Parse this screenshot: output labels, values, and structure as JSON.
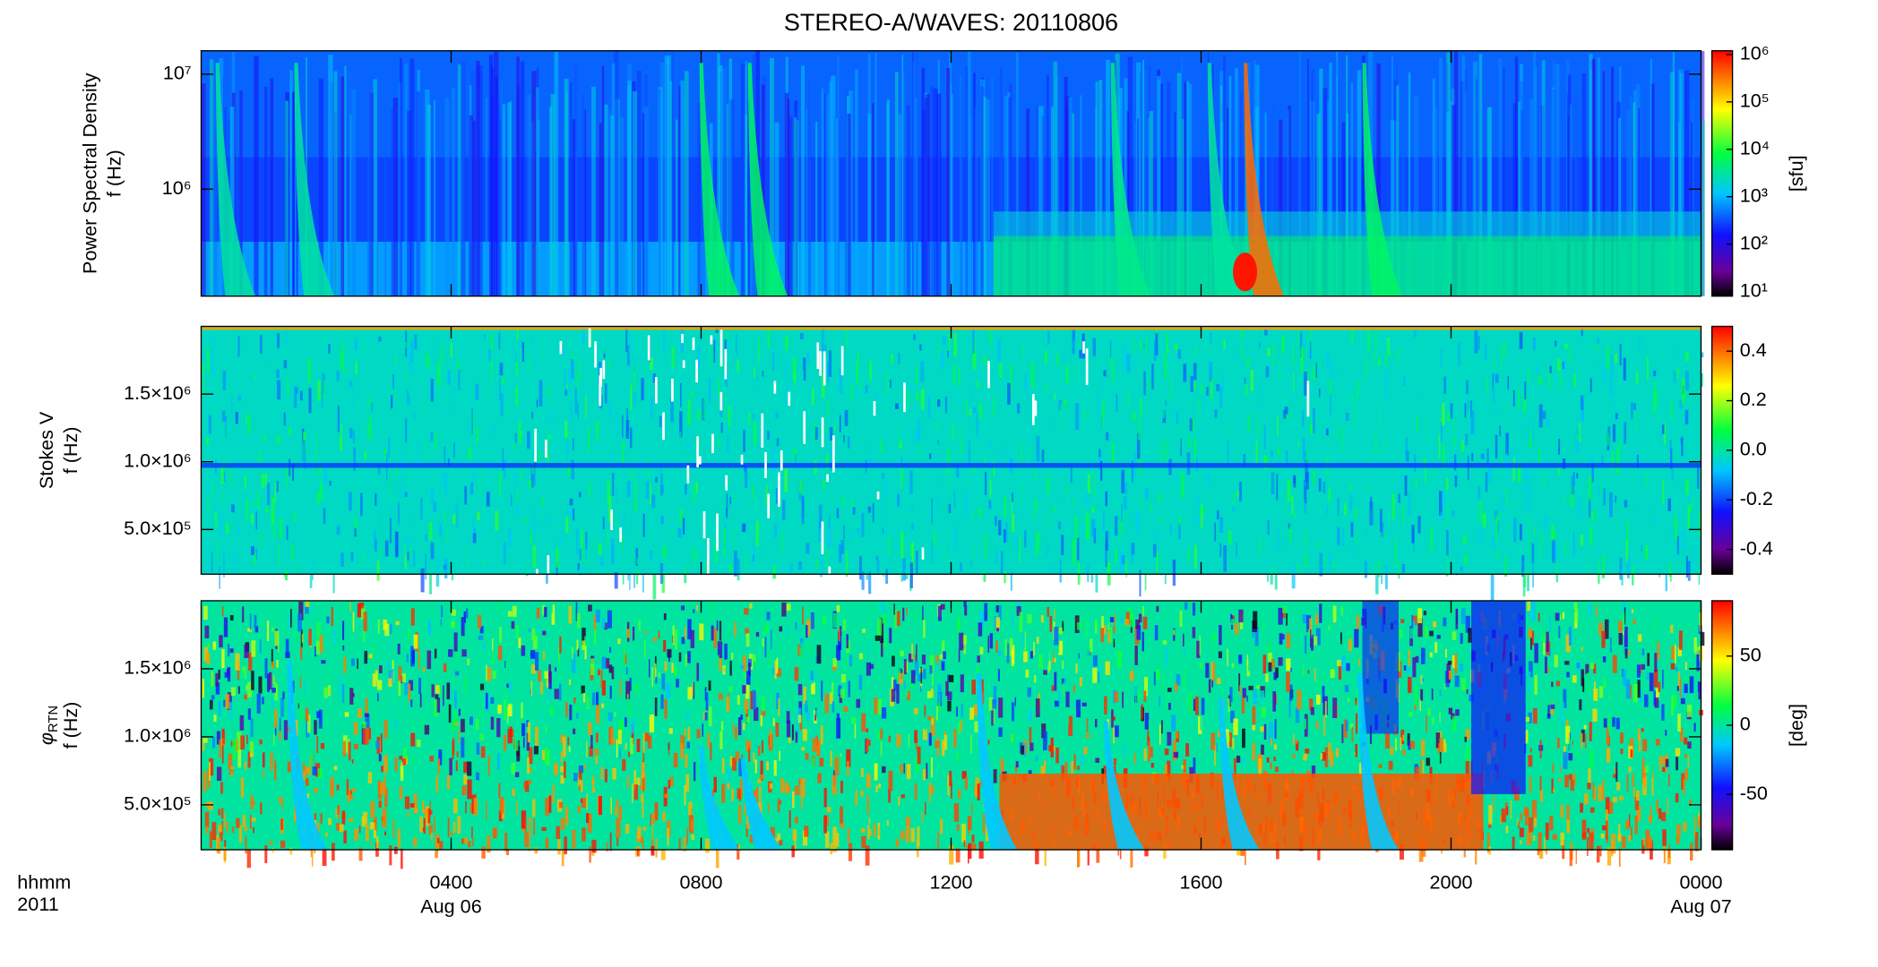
{
  "chart_data": [
    {
      "type": "heatmap",
      "title": "STEREO-A/WAVES: 20110806",
      "ylabel": "Power Spectral Density",
      "ylabel2": "f (Hz)",
      "ylog": true,
      "ylim": [
        117000,
        16000000
      ],
      "yticks": [
        {
          "value": 1000000,
          "label": "10⁶"
        },
        {
          "value": 10000000,
          "label": "10⁷"
        }
      ],
      "xlim": [
        0,
        24
      ],
      "xticks": [
        4,
        8,
        12,
        16,
        20
      ],
      "colormap": "rainbow",
      "clog": true,
      "clim": [
        8,
        1200000
      ],
      "cticks": [
        {
          "value": 10,
          "label": "10¹"
        },
        {
          "value": 100,
          "label": "10²"
        },
        {
          "value": 1000,
          "label": "10³"
        },
        {
          "value": 10000,
          "label": "10⁴"
        },
        {
          "value": 100000,
          "label": "10⁵"
        },
        {
          "value": 1000000,
          "label": "10⁶"
        }
      ],
      "clabel": "[sfu]"
    },
    {
      "type": "heatmap",
      "ylabel": "Stokes V",
      "ylabel2": "f (Hz)",
      "ylog": false,
      "ylim": [
        170000,
        2000000
      ],
      "yticks": [
        {
          "value": 500000,
          "label": "5.0×10⁵"
        },
        {
          "value": 1000000,
          "label": "1.0×10⁶"
        },
        {
          "value": 1500000,
          "label": "1.5×10⁶"
        }
      ],
      "xlim": [
        0,
        24
      ],
      "xticks": [
        4,
        8,
        12,
        16,
        20
      ],
      "colormap": "rainbow",
      "clog": false,
      "clim": [
        -0.5,
        0.5
      ],
      "cticks": [
        -0.4,
        -0.2,
        {
          "value": 0,
          "label": "0.0"
        },
        0.2,
        0.4
      ]
    },
    {
      "type": "heatmap",
      "ylabel": "φ",
      "ylabel_sub": "RTN",
      "ylabel2": "f (Hz)",
      "ylog": false,
      "ylim": [
        170000,
        2000000
      ],
      "yticks": [
        {
          "value": 500000,
          "label": "5.0×10⁵"
        },
        {
          "value": 1000000,
          "label": "1.0×10⁶"
        },
        {
          "value": 1500000,
          "label": "1.5×10⁶"
        }
      ],
      "xlim": [
        0,
        24
      ],
      "xticks": [
        {
          "value": 4,
          "label": "0400"
        },
        {
          "value": 8,
          "label": "0800"
        },
        {
          "value": 12,
          "label": "1200"
        },
        {
          "value": 16,
          "label": "1600"
        },
        {
          "value": 20,
          "label": "2000"
        },
        {
          "value": 24,
          "label": "0000"
        }
      ],
      "xdates": [
        {
          "value": 4,
          "label": "Aug 06"
        },
        {
          "value": 24,
          "label": "Aug 07"
        }
      ],
      "xlabel": "hhmm",
      "year": "2011",
      "colormap": "rainbow",
      "clog": false,
      "clim": [
        -90,
        90
      ],
      "cticks": [
        -50,
        0,
        50
      ],
      "clabel": "[deg]"
    }
  ]
}
